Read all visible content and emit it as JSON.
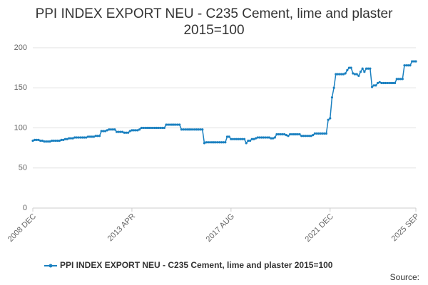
{
  "chart_data": {
    "type": "line",
    "title": "PPI INDEX EXPORT NEU - C235 Cement, lime and plaster 2015=100",
    "source": "Source:",
    "categories": [
      "2008 DEC",
      null,
      null,
      null,
      null,
      null,
      null,
      null,
      null,
      null,
      null,
      null,
      null,
      null,
      null,
      null,
      null,
      null,
      null,
      null,
      null,
      null,
      null,
      null,
      null,
      null,
      null,
      null,
      null,
      null,
      null,
      null,
      null,
      null,
      null,
      null,
      null,
      null,
      null,
      null,
      null,
      null,
      null,
      null,
      null,
      null,
      null,
      null,
      null,
      null,
      null,
      null,
      "2013 APR",
      null,
      null,
      null,
      null,
      null,
      null,
      null,
      null,
      null,
      null,
      null,
      null,
      null,
      null,
      null,
      null,
      null,
      null,
      null,
      null,
      null,
      null,
      null,
      null,
      null,
      null,
      null,
      null,
      null,
      null,
      null,
      null,
      null,
      null,
      null,
      null,
      null,
      null,
      null,
      null,
      null,
      null,
      null,
      null,
      null,
      null,
      null,
      null,
      null,
      null,
      null,
      "2017 AUG",
      null,
      null,
      null,
      null,
      null,
      null,
      null,
      null,
      null,
      null,
      null,
      null,
      null,
      null,
      null,
      null,
      null,
      null,
      null,
      null,
      null,
      null,
      null,
      null,
      null,
      null,
      null,
      null,
      null,
      null,
      null,
      null,
      null,
      null,
      null,
      null,
      null,
      null,
      null,
      null,
      null,
      null,
      null,
      null,
      null,
      null,
      null,
      null,
      null,
      null,
      null,
      "2021 DEC",
      null,
      null,
      null,
      null,
      null,
      null,
      null,
      null,
      null,
      null,
      null,
      null,
      null,
      null,
      null,
      null,
      null,
      null,
      null,
      null,
      null,
      null,
      null,
      null,
      null,
      null,
      null,
      null,
      null,
      null,
      null,
      null,
      null,
      null,
      null,
      null,
      null,
      null,
      null,
      null,
      null,
      null,
      null,
      null,
      "2025 SEP"
    ],
    "series": [
      {
        "name": "PPI INDEX EXPORT NEU - C235 Cement, lime and plaster 2015=100",
        "color": "#1a80c0",
        "values": [
          84,
          85,
          85,
          85,
          84,
          84,
          83,
          83,
          83,
          83,
          84,
          84,
          84,
          84,
          84,
          85,
          85,
          86,
          86,
          87,
          87,
          87,
          88,
          88,
          88,
          88,
          88,
          88,
          88,
          89,
          89,
          89,
          89,
          90,
          90,
          90,
          96,
          96,
          96,
          97,
          98,
          98,
          98,
          98,
          95,
          95,
          95,
          95,
          94,
          94,
          94,
          96,
          97,
          97,
          97,
          97,
          98,
          100,
          100,
          100,
          100,
          100,
          100,
          100,
          100,
          100,
          100,
          100,
          100,
          100,
          104,
          104,
          104,
          104,
          104,
          104,
          104,
          104,
          98,
          98,
          98,
          98,
          98,
          98,
          98,
          98,
          98,
          98,
          98,
          98,
          81,
          82,
          82,
          82,
          82,
          82,
          82,
          82,
          82,
          82,
          82,
          82,
          89,
          89,
          86,
          86,
          86,
          86,
          86,
          86,
          86,
          86,
          81,
          84,
          84,
          86,
          86,
          87,
          88,
          88,
          88,
          88,
          88,
          88,
          88,
          87,
          87,
          88,
          92,
          92,
          92,
          92,
          92,
          91,
          90,
          92,
          92,
          92,
          92,
          92,
          92,
          90,
          90,
          90,
          90,
          90,
          90,
          91,
          93,
          93,
          93,
          93,
          93,
          93,
          93,
          110,
          112,
          138,
          150,
          167,
          167,
          167,
          167,
          167,
          168,
          172,
          175,
          175,
          168,
          167,
          167,
          165,
          170,
          174,
          170,
          174,
          174,
          174,
          151,
          153,
          153,
          156,
          157,
          156,
          156,
          156,
          156,
          156,
          156,
          156,
          156,
          161,
          161,
          161,
          161,
          178,
          178,
          178,
          178,
          183,
          183,
          183
        ]
      }
    ],
    "ylim": [
      0,
      200
    ],
    "yticks": [
      0,
      50,
      100,
      150,
      200
    ],
    "grid": true
  }
}
